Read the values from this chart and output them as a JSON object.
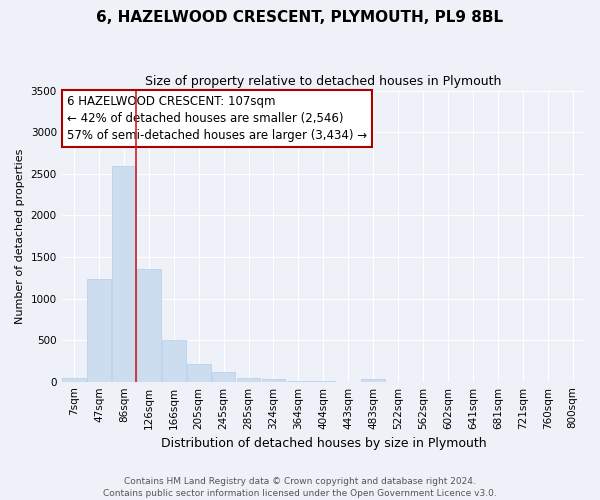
{
  "title": "6, HAZELWOOD CRESCENT, PLYMOUTH, PL9 8BL",
  "subtitle": "Size of property relative to detached houses in Plymouth",
  "xlabel": "Distribution of detached houses by size in Plymouth",
  "ylabel": "Number of detached properties",
  "bar_labels": [
    "7sqm",
    "47sqm",
    "86sqm",
    "126sqm",
    "166sqm",
    "205sqm",
    "245sqm",
    "285sqm",
    "324sqm",
    "364sqm",
    "404sqm",
    "443sqm",
    "483sqm",
    "522sqm",
    "562sqm",
    "602sqm",
    "641sqm",
    "681sqm",
    "721sqm",
    "760sqm",
    "800sqm"
  ],
  "bar_values": [
    50,
    1230,
    2590,
    1350,
    500,
    210,
    120,
    50,
    35,
    12,
    6,
    2,
    30,
    0,
    0,
    0,
    0,
    0,
    0,
    0,
    0
  ],
  "bar_color": "#ccddf0",
  "bar_edge_color": "#aac8e8",
  "vline_color": "#cc2222",
  "ylim": [
    0,
    3500
  ],
  "yticks": [
    0,
    500,
    1000,
    1500,
    2000,
    2500,
    3000,
    3500
  ],
  "annotation_title": "6 HAZELWOOD CRESCENT: 107sqm",
  "annotation_line1": "← 42% of detached houses are smaller (2,546)",
  "annotation_line2": "57% of semi-detached houses are larger (3,434) →",
  "annotation_box_facecolor": "#ffffff",
  "annotation_box_edgecolor": "#aa0000",
  "footer_line1": "Contains HM Land Registry data © Crown copyright and database right 2024.",
  "footer_line2": "Contains public sector information licensed under the Open Government Licence v3.0.",
  "background_color": "#eef2f8",
  "grid_color": "#ffffff",
  "title_fontsize": 11,
  "subtitle_fontsize": 9,
  "ylabel_fontsize": 8,
  "xlabel_fontsize": 9,
  "tick_fontsize": 7.5,
  "footer_fontsize": 6.5,
  "annotation_fontsize": 8.5
}
